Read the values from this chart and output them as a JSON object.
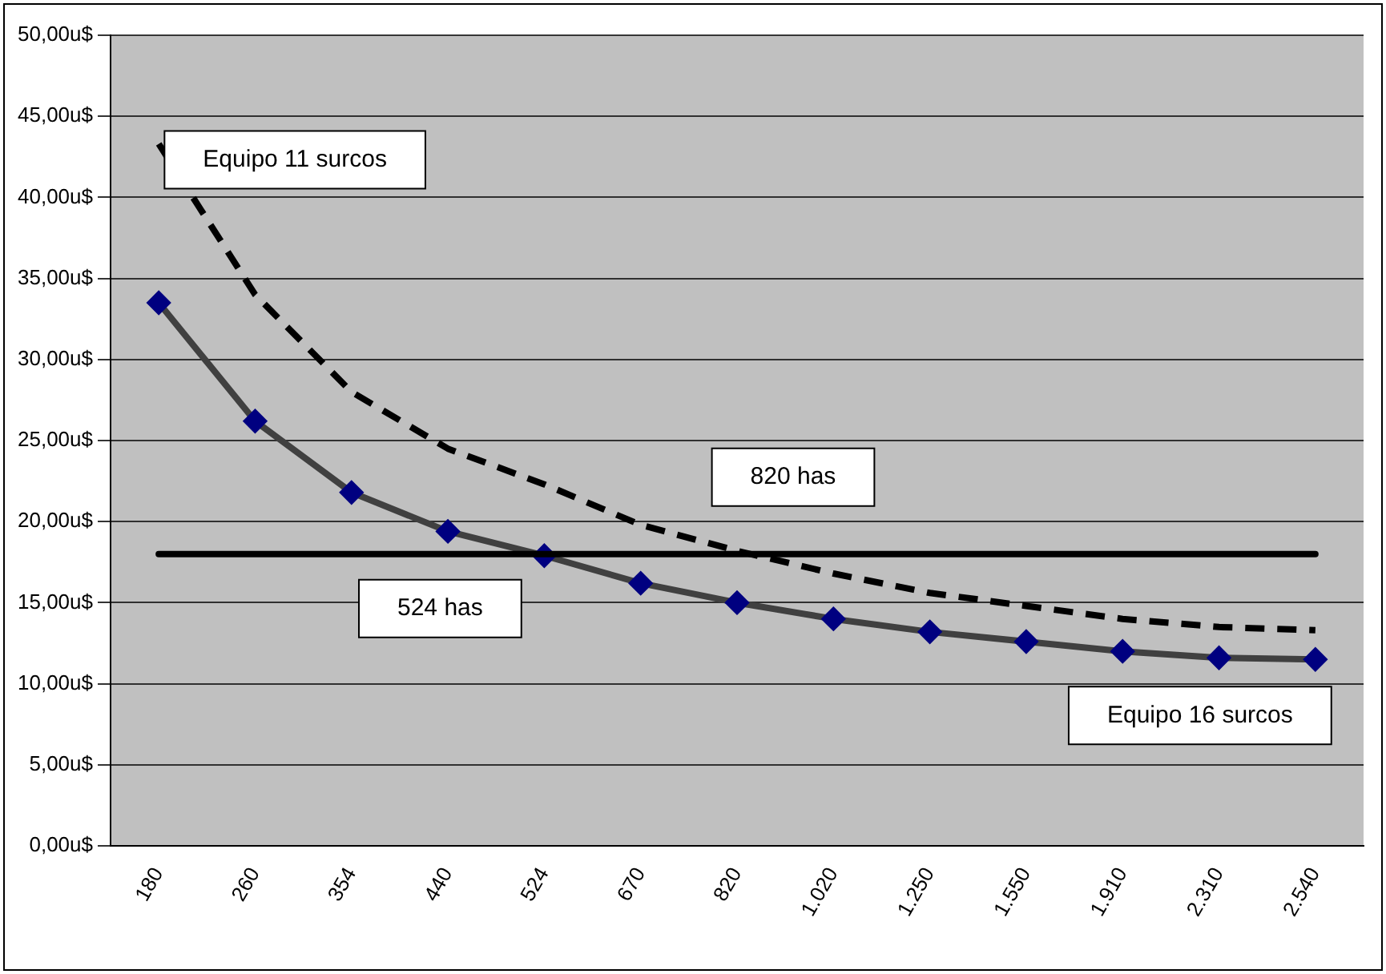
{
  "chart_data": {
    "type": "line",
    "categories": [
      "180",
      "260",
      "354",
      "440",
      "524",
      "670",
      "820",
      "1.020",
      "1.250",
      "1.550",
      "1.910",
      "2.310",
      "2.540"
    ],
    "series": [
      {
        "name": "Equipo 11 surcos",
        "color": "#000000",
        "line_style": "dashed",
        "marker": "none",
        "values": [
          43.3,
          34.0,
          28.0,
          24.5,
          22.3,
          19.8,
          18.2,
          16.8,
          15.6,
          14.8,
          14.0,
          13.5,
          13.3
        ]
      },
      {
        "name": "Equipo 16 surcos",
        "color": "#404040",
        "line_style": "solid",
        "marker": "diamond",
        "values": [
          33.5,
          26.2,
          21.8,
          19.4,
          17.9,
          16.2,
          15.0,
          14.0,
          13.2,
          12.6,
          12.0,
          11.6,
          11.5
        ]
      }
    ],
    "ylim": [
      0,
      50
    ],
    "yticks": [
      {
        "value": 0,
        "label": "0,00u$"
      },
      {
        "value": 5,
        "label": "5,00u$"
      },
      {
        "value": 10,
        "label": "10,00u$"
      },
      {
        "value": 15,
        "label": "15,00u$"
      },
      {
        "value": 20,
        "label": "20,00u$"
      },
      {
        "value": 25,
        "label": "25,00u$"
      },
      {
        "value": 30,
        "label": "30,00u$"
      },
      {
        "value": 35,
        "label": "35,00u$"
      },
      {
        "value": 40,
        "label": "40,00u$"
      },
      {
        "value": 45,
        "label": "45,00u$"
      },
      {
        "value": 50,
        "label": "50,00u$"
      }
    ],
    "ref_lines": [
      {
        "axis": "y",
        "value": 18.0,
        "color": "#000000",
        "line_style": "solid"
      }
    ],
    "annotations": [
      {
        "text": "524 has",
        "x": "524",
        "y": 18.0
      },
      {
        "text": "820 has",
        "x": "820",
        "y": 18.0
      }
    ],
    "grid": "y",
    "legend": false
  }
}
